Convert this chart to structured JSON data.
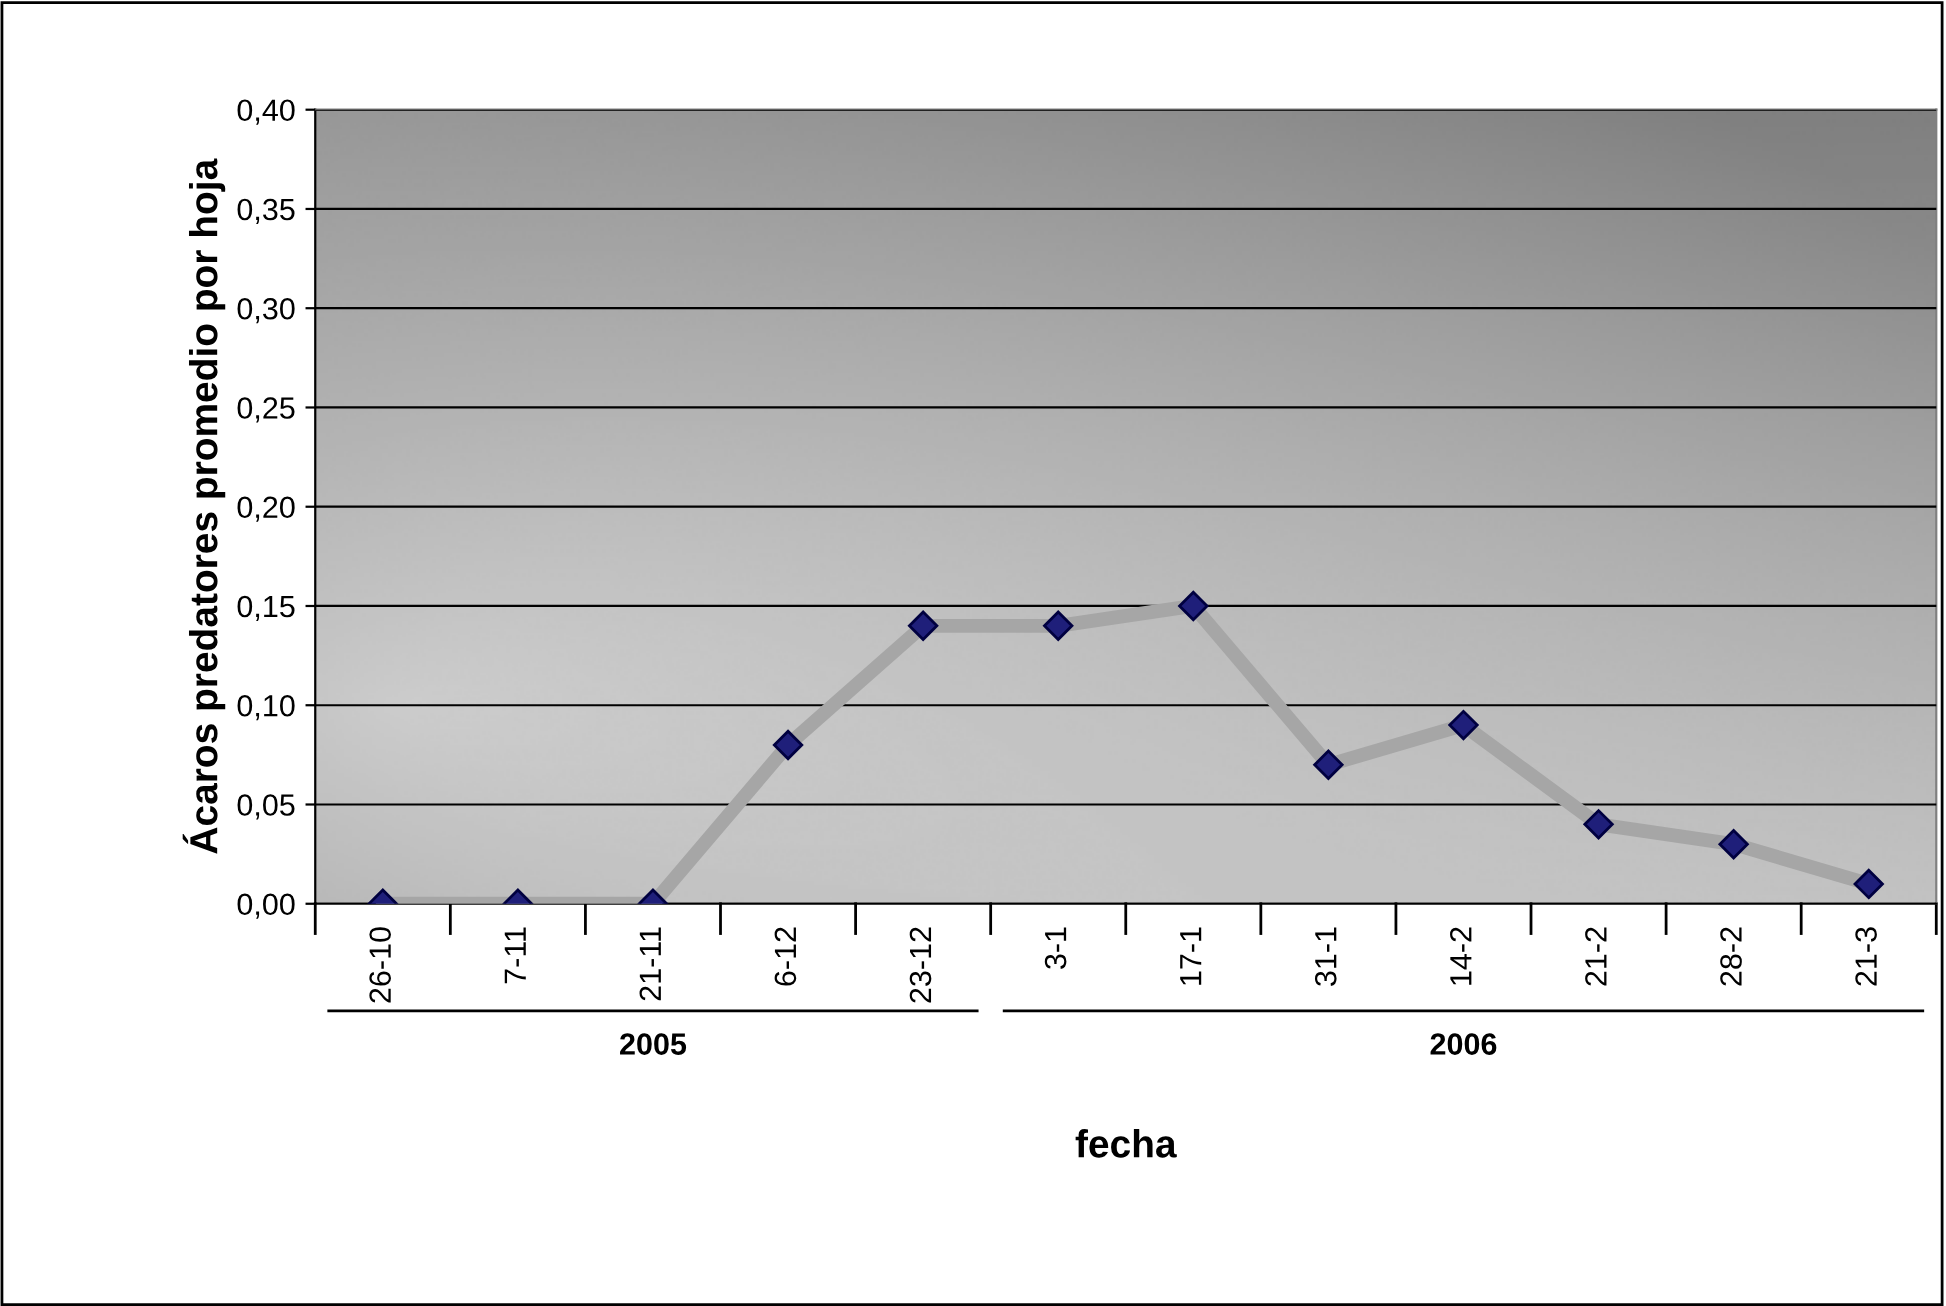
{
  "chart_data": {
    "type": "line",
    "xlabel": "fecha",
    "ylabel": "Ácaros predatores promedio por hoja",
    "categories": [
      "26-10",
      "7-11",
      "21-11",
      "6-12",
      "23-12",
      "3-1",
      "17-1",
      "31-1",
      "14-2",
      "21-2",
      "28-2",
      "21-3"
    ],
    "series": [
      {
        "color": "#a6a6a6",
        "values": [
          0,
          0,
          0,
          0.08,
          0.14,
          0.14,
          0.15,
          0.07,
          0.09,
          0.04,
          0.03,
          0.01
        ]
      }
    ],
    "marker": "diamond",
    "line_style": "solid",
    "grid": "y",
    "ylim": [
      0,
      0.4
    ],
    "yticks": [
      {
        "value": 0,
        "label": "0,00"
      },
      {
        "value": 0.05,
        "label": "0,05"
      },
      {
        "value": 0.1,
        "label": "0,10"
      },
      {
        "value": 0.15,
        "label": "0,15"
      },
      {
        "value": 0.2,
        "label": "0,20"
      },
      {
        "value": 0.25,
        "label": "0,25"
      },
      {
        "value": 0.3,
        "label": "0,30"
      },
      {
        "value": 0.35,
        "label": "0,35"
      },
      {
        "value": 0.4,
        "label": "0,40"
      }
    ],
    "annotations": [
      "2005",
      "2006"
    ]
  }
}
